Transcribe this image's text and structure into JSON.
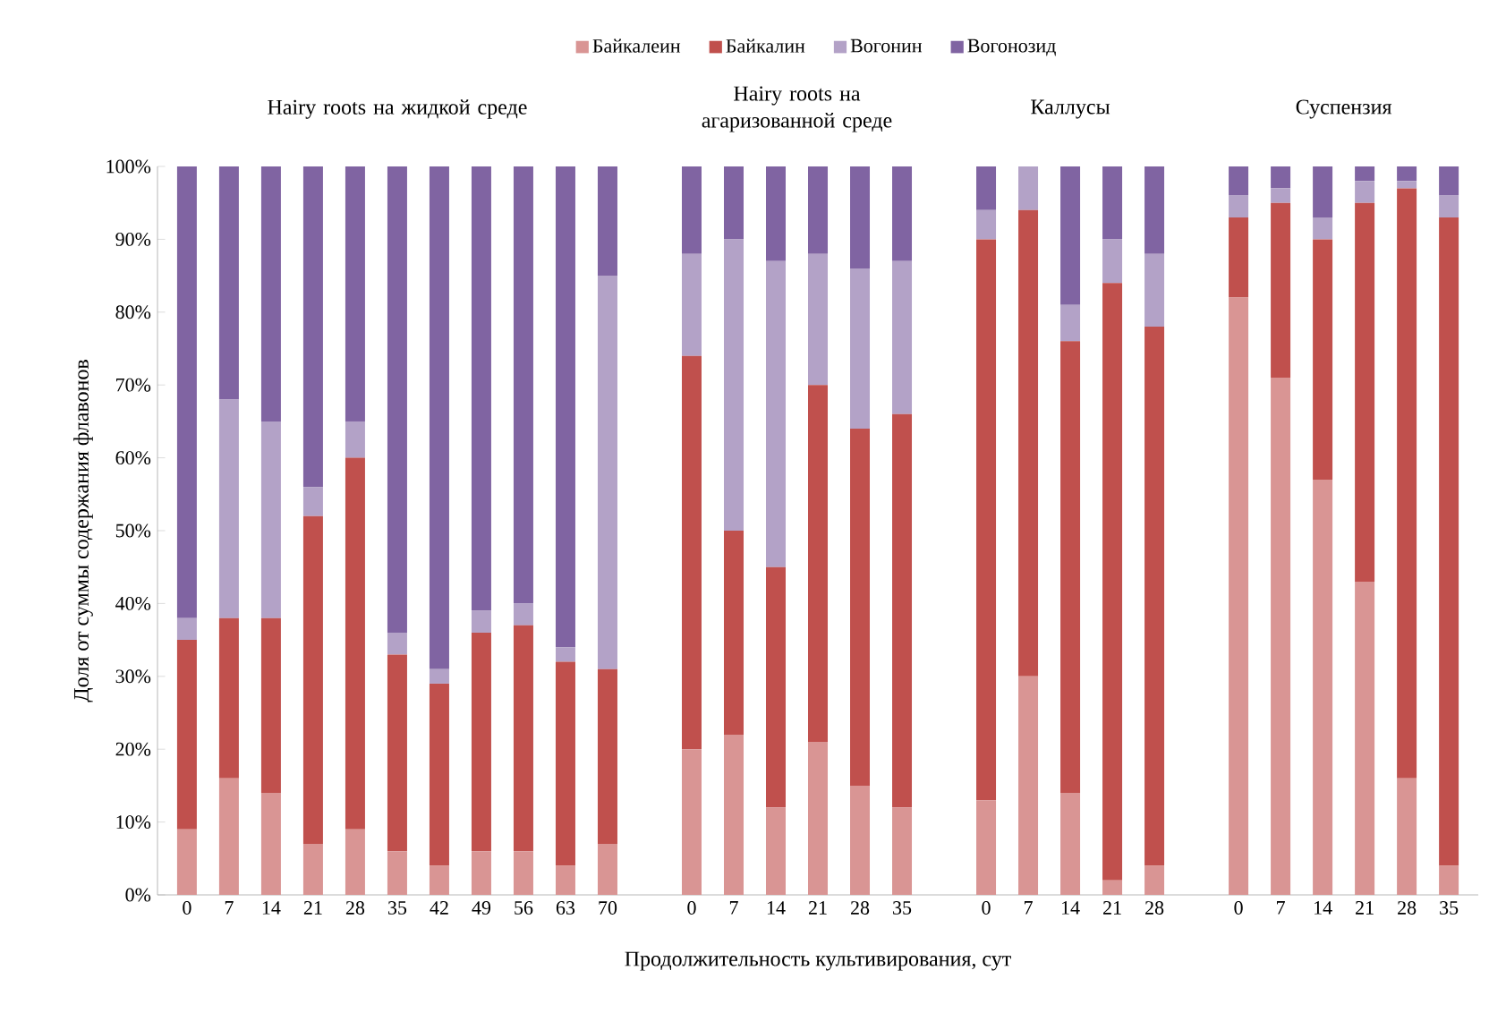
{
  "chart_data": {
    "type": "bar",
    "stacked": true,
    "legend": "top",
    "grid": false,
    "ylabel": "Доля  от суммы содержания флавонов",
    "xlabel": "Продолжительность культивирования, сут",
    "annotations": [
      "Hairy roots на жидкой среде",
      "Hairy roots на агаризованной среде",
      "Каллусы",
      "Суспензия"
    ],
    "categories": [
      "0",
      "7",
      "14",
      "21",
      "28",
      "35",
      "42",
      "49",
      "56",
      "63",
      "70",
      null,
      "0",
      "7",
      "14",
      "21",
      "28",
      "35",
      null,
      "0",
      "7",
      "14",
      "21",
      "28",
      null,
      "0",
      "7",
      "14",
      "21",
      "28",
      "35"
    ],
    "ylim": [
      0,
      100
    ],
    "yticks": [
      {
        "value": 0,
        "label": "0%"
      },
      {
        "value": 10,
        "label": "10%"
      },
      {
        "value": 20,
        "label": "20%"
      },
      {
        "value": 30,
        "label": "30%"
      },
      {
        "value": 40,
        "label": "40%"
      },
      {
        "value": 50,
        "label": "50%"
      },
      {
        "value": 60,
        "label": "60%"
      },
      {
        "value": 70,
        "label": "70%"
      },
      {
        "value": 80,
        "label": "80%"
      },
      {
        "value": 90,
        "label": "90%"
      },
      {
        "value": 100,
        "label": "100%"
      }
    ],
    "series": [
      {
        "name": "Байкалеин",
        "color": "#d99594",
        "values": [
          9,
          16,
          14,
          7,
          9,
          6,
          4,
          6,
          6,
          4,
          7,
          null,
          20,
          22,
          12,
          21,
          15,
          12,
          null,
          13,
          30,
          14,
          2,
          4,
          null,
          82,
          71,
          57,
          43,
          16,
          4
        ]
      },
      {
        "name": "Байкалин",
        "color": "#c0504d",
        "values": [
          26,
          22,
          24,
          45,
          51,
          27,
          25,
          30,
          31,
          28,
          24,
          null,
          54,
          28,
          33,
          49,
          49,
          54,
          null,
          77,
          64,
          62,
          82,
          74,
          null,
          11,
          24,
          33,
          52,
          81,
          89
        ]
      },
      {
        "name": "Вогонин",
        "color": "#b3a2c7",
        "values": [
          3,
          30,
          27,
          4,
          5,
          3,
          2,
          3,
          3,
          2,
          54,
          null,
          14,
          40,
          42,
          18,
          22,
          21,
          null,
          4,
          6,
          5,
          6,
          10,
          null,
          3,
          2,
          3,
          3,
          1,
          3
        ]
      },
      {
        "name": "Вогонозид",
        "color": "#8064a2",
        "values": [
          62,
          32,
          35,
          44,
          35,
          64,
          69,
          61,
          60,
          66,
          15,
          null,
          12,
          10,
          13,
          12,
          14,
          13,
          null,
          6,
          0,
          19,
          10,
          12,
          null,
          4,
          3,
          7,
          2,
          2,
          4
        ]
      }
    ]
  }
}
